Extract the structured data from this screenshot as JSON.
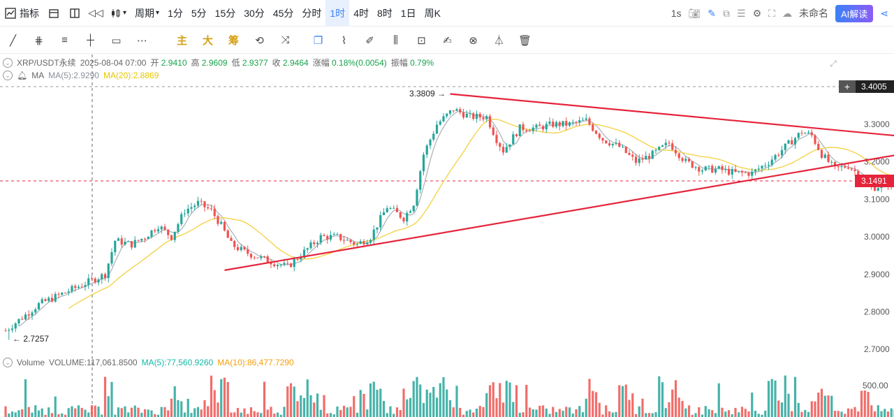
{
  "topbar": {
    "indicators": "指标",
    "period": "周期",
    "timeframes": [
      "1分",
      "5分",
      "15分",
      "30分",
      "45分",
      "分时",
      "1时",
      "4时",
      "8时",
      "1日",
      "周K"
    ],
    "active_timeframe": "1时",
    "speed": "1s",
    "chart_name": "未命名",
    "ai_label": "AI解读"
  },
  "draw_tools": {
    "main": "主",
    "big": "大",
    "chips": "筹"
  },
  "info": {
    "symbol": "XRP/USDT永续",
    "datetime": "2025-08-04 07:00",
    "open_label": "开",
    "open": "2.9410",
    "high_label": "高",
    "high": "2.9609",
    "low_label": "低",
    "low": "2.9377",
    "close_label": "收",
    "close": "2.9464",
    "change_label": "涨幅",
    "change": "0.18%(0.0054)",
    "amp_label": "振幅",
    "amp": "0.79%"
  },
  "ma_info": {
    "label": "MA",
    "ma5": "MA(5):2.9290",
    "ma20": "MA(20):2.8869"
  },
  "vol_info": {
    "label": "Volume",
    "volume": "VOLUME:117,061.8500",
    "ma5": "MA(5):77,560.9260",
    "ma10": "MA(10):86,477.7290"
  },
  "colors": {
    "up": "#26a69a",
    "down": "#ef5350",
    "ma5": "#b0b4bc",
    "ma20": "#f4d03f",
    "trend": "#e5243b"
  },
  "chart_data": {
    "type": "candlestick",
    "y_ticks": [
      "3.3000",
      "3.2000",
      "3.1000",
      "3.0000",
      "2.9000",
      "2.8000",
      "2.7000"
    ],
    "y_range": [
      2.68,
      3.44
    ],
    "current_price": "3.1491",
    "crosshair_price": "3.4005",
    "high_annotation": "3.3809",
    "low_annotation": "2.7257",
    "volume_tick": "500.00",
    "anchors": [
      [
        0,
        2.75
      ],
      [
        10,
        2.82
      ],
      [
        20,
        2.86
      ],
      [
        30,
        2.9
      ],
      [
        33,
        2.99
      ],
      [
        38,
        2.98
      ],
      [
        42,
        3.0
      ],
      [
        46,
        3.03
      ],
      [
        50,
        3.0
      ],
      [
        54,
        3.07
      ],
      [
        58,
        3.09
      ],
      [
        62,
        3.07
      ],
      [
        65,
        3.03
      ],
      [
        68,
        2.98
      ],
      [
        72,
        2.96
      ],
      [
        78,
        2.94
      ],
      [
        85,
        2.92
      ],
      [
        90,
        2.96
      ],
      [
        95,
        3.0
      ],
      [
        100,
        3.0
      ],
      [
        106,
        2.98
      ],
      [
        110,
        3.0
      ],
      [
        115,
        3.08
      ],
      [
        120,
        3.05
      ],
      [
        123,
        3.09
      ],
      [
        126,
        3.22
      ],
      [
        130,
        3.3
      ],
      [
        135,
        3.34
      ],
      [
        140,
        3.32
      ],
      [
        145,
        3.32
      ],
      [
        148,
        3.26
      ],
      [
        150,
        3.23
      ],
      [
        155,
        3.29
      ],
      [
        160,
        3.29
      ],
      [
        165,
        3.3
      ],
      [
        170,
        3.3
      ],
      [
        175,
        3.31
      ],
      [
        180,
        3.26
      ],
      [
        185,
        3.24
      ],
      [
        190,
        3.2
      ],
      [
        195,
        3.22
      ],
      [
        200,
        3.25
      ],
      [
        205,
        3.2
      ],
      [
        210,
        3.18
      ],
      [
        215,
        3.18
      ],
      [
        220,
        3.17
      ],
      [
        225,
        3.17
      ],
      [
        230,
        3.2
      ],
      [
        235,
        3.24
      ],
      [
        240,
        3.28
      ],
      [
        243,
        3.27
      ],
      [
        246,
        3.22
      ],
      [
        250,
        3.18
      ],
      [
        254,
        3.19
      ],
      [
        258,
        3.16
      ],
      [
        261,
        3.13
      ],
      [
        265,
        3.14
      ],
      [
        268,
        3.15
      ]
    ],
    "trendlines": [
      {
        "from": {
          "i": 66,
          "price": 2.911
        },
        "to": {
          "i": 240,
          "price": 3.175
        },
        "extend": 3.27
      },
      {
        "from": {
          "i": 134,
          "price": 3.381
        },
        "to": {
          "i": 268,
          "price": 3.27
        }
      }
    ]
  }
}
